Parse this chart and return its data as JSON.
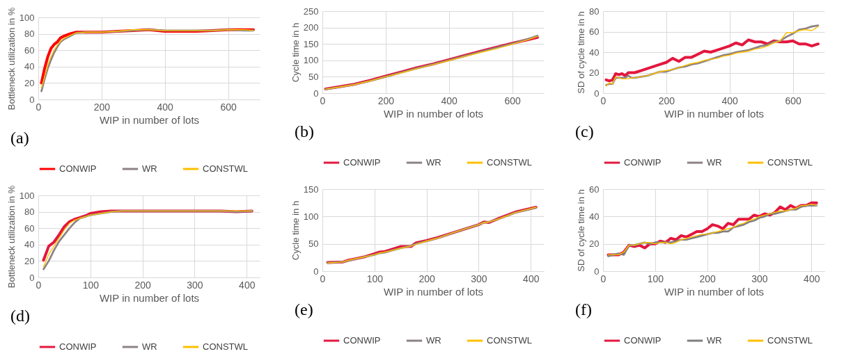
{
  "chart_data": [
    {
      "type": "line",
      "xlabel": "WIP in number of lots",
      "ylabel": "Bottleneck utilization in %",
      "annotations": [
        "(a)"
      ],
      "xlim": [
        0,
        700
      ],
      "xticks": [
        0,
        200,
        400,
        600
      ],
      "ylim": [
        0,
        100
      ],
      "yticks": [
        0,
        20,
        40,
        60,
        80,
        100
      ],
      "grid": true,
      "legend": "bottom",
      "marker": "none",
      "line_style": "solid",
      "x": [
        10,
        20,
        30,
        40,
        50,
        60,
        70,
        80,
        100,
        120,
        150,
        200,
        250,
        300,
        350,
        400,
        450,
        500,
        550,
        600,
        650,
        680
      ],
      "series": [
        {
          "name": "CONWIP",
          "color": "#ff0000",
          "values": [
            20,
            38,
            52,
            62,
            67,
            70,
            75,
            77,
            80,
            82,
            82,
            82,
            83,
            84,
            85,
            83,
            83,
            83,
            84,
            85,
            85,
            85
          ]
        },
        {
          "name": "WR",
          "color": "#8c8284",
          "values": [
            10,
            25,
            38,
            48,
            57,
            64,
            70,
            73,
            77,
            81,
            82,
            82,
            83,
            84,
            85,
            84,
            84,
            84,
            84,
            85,
            84,
            84
          ]
        },
        {
          "name": "CONSTWL",
          "color": "#ffc000",
          "values": [
            14,
            28,
            42,
            52,
            60,
            66,
            71,
            74,
            78,
            81,
            82,
            82,
            83,
            85,
            85,
            84,
            84,
            84,
            84,
            85,
            85,
            84
          ]
        }
      ]
    },
    {
      "type": "line",
      "xlabel": "WIP in number of lots",
      "ylabel": "Cycle time in h",
      "annotations": [
        "(b)"
      ],
      "xlim": [
        0,
        700
      ],
      "xticks": [
        0,
        200,
        400,
        600
      ],
      "ylim": [
        0,
        250
      ],
      "yticks": [
        0,
        50,
        100,
        150,
        200,
        250
      ],
      "grid": true,
      "legend": "bottom",
      "marker": "none",
      "line_style": "solid",
      "x": [
        10,
        50,
        100,
        150,
        200,
        250,
        300,
        350,
        400,
        450,
        500,
        550,
        600,
        650,
        680
      ],
      "series": [
        {
          "name": "CONWIP",
          "color": "#e3173e",
          "values": [
            13,
            19,
            27,
            39,
            52,
            65,
            78,
            89,
            102,
            115,
            128,
            140,
            152,
            163,
            170
          ]
        },
        {
          "name": "WR",
          "color": "#8c8284",
          "values": [
            12,
            18,
            26,
            37,
            50,
            63,
            76,
            88,
            100,
            113,
            126,
            138,
            151,
            165,
            175
          ]
        },
        {
          "name": "CONSTWL",
          "color": "#ffc000",
          "values": [
            12,
            18,
            26,
            37,
            50,
            62,
            75,
            87,
            99,
            112,
            124,
            136,
            149,
            163,
            173
          ]
        }
      ]
    },
    {
      "type": "line",
      "xlabel": "WIP in number of lots",
      "ylabel": "SD of cycle time in h",
      "annotations": [
        "(c)"
      ],
      "xlim": [
        0,
        700
      ],
      "xticks": [
        0,
        200,
        400,
        600
      ],
      "ylim": [
        0,
        80
      ],
      "yticks": [
        0,
        20,
        40,
        60,
        80
      ],
      "grid": true,
      "legend": "bottom",
      "marker": "none",
      "line_style": "solid",
      "x": [
        10,
        20,
        30,
        40,
        50,
        60,
        70,
        80,
        90,
        100,
        120,
        140,
        160,
        180,
        200,
        220,
        240,
        260,
        280,
        300,
        320,
        340,
        360,
        380,
        400,
        420,
        440,
        460,
        480,
        500,
        520,
        540,
        560,
        580,
        600,
        620,
        640,
        660,
        680
      ],
      "series": [
        {
          "name": "CONWIP",
          "color": "#e3173e",
          "values": [
            13,
            12,
            13,
            19,
            18,
            19,
            17,
            20,
            20,
            20,
            22,
            24,
            26,
            28,
            30,
            34,
            31,
            35,
            35,
            38,
            41,
            40,
            42,
            44,
            46,
            49,
            47,
            52,
            50,
            50,
            48,
            51,
            50,
            50,
            51,
            48,
            48,
            46,
            48
          ]
        },
        {
          "name": "WR",
          "color": "#8c8284",
          "values": [
            8,
            9,
            9,
            15,
            15,
            15,
            15,
            17,
            15,
            15,
            16,
            17,
            19,
            21,
            21,
            23,
            25,
            26,
            28,
            29,
            31,
            33,
            35,
            37,
            38,
            40,
            41,
            42,
            44,
            46,
            47,
            50,
            51,
            55,
            58,
            62,
            63,
            65,
            66
          ]
        },
        {
          "name": "CONSTWL",
          "color": "#ffc000",
          "values": [
            7,
            10,
            9,
            16,
            15,
            14,
            14,
            14,
            15,
            15,
            16,
            17,
            19,
            21,
            22,
            23,
            25,
            27,
            29,
            30,
            32,
            33,
            34,
            36,
            37,
            39,
            40,
            41,
            43,
            44,
            46,
            49,
            51,
            59,
            59,
            61,
            62,
            61,
            65
          ]
        }
      ]
    },
    {
      "type": "line",
      "xlabel": "WIP in number of lots",
      "ylabel": "Bottleneck utilization in %",
      "annotations": [
        "(d)"
      ],
      "xlim": [
        0,
        425
      ],
      "xticks": [
        0,
        100,
        200,
        300,
        400
      ],
      "ylim": [
        0,
        100
      ],
      "yticks": [
        0,
        20,
        40,
        60,
        80,
        100
      ],
      "grid": true,
      "legend": "bottom",
      "marker": "none",
      "line_style": "solid",
      "x": [
        10,
        20,
        30,
        40,
        50,
        60,
        70,
        80,
        90,
        100,
        120,
        140,
        160,
        200,
        250,
        300,
        350,
        380,
        410
      ],
      "series": [
        {
          "name": "CONWIP",
          "color": "#e3173e",
          "values": [
            21,
            38,
            43,
            52,
            62,
            68,
            71,
            73,
            75,
            78,
            80,
            81,
            81,
            81,
            81,
            81,
            81,
            80,
            81
          ]
        },
        {
          "name": "WR",
          "color": "#8c8284",
          "values": [
            10,
            20,
            33,
            44,
            52,
            60,
            67,
            72,
            74,
            76,
            78,
            80,
            81,
            81,
            81,
            81,
            81,
            80,
            81
          ]
        },
        {
          "name": "CONSTWL",
          "color": "#ffc000",
          "values": [
            13,
            28,
            38,
            48,
            58,
            66,
            70,
            72,
            74,
            76,
            78,
            80,
            81,
            81,
            81,
            81,
            81,
            81,
            81
          ]
        }
      ]
    },
    {
      "type": "line",
      "xlabel": "WIP in number of lots",
      "ylabel": "Cycle time in h",
      "annotations": [
        "(e)"
      ],
      "xlim": [
        0,
        425
      ],
      "xticks": [
        0,
        100,
        200,
        300,
        400
      ],
      "ylim": [
        0,
        150
      ],
      "yticks": [
        0,
        50,
        100,
        150
      ],
      "grid": true,
      "legend": "bottom",
      "marker": "none",
      "line_style": "solid",
      "x": [
        10,
        40,
        50,
        80,
        100,
        110,
        120,
        130,
        150,
        170,
        180,
        200,
        220,
        250,
        300,
        310,
        320,
        340,
        370,
        410
      ],
      "series": [
        {
          "name": "CONWIP",
          "color": "#e3173e",
          "values": [
            16,
            17,
            20,
            26,
            32,
            35,
            36,
            39,
            45,
            45,
            52,
            56,
            61,
            70,
            85,
            90,
            89,
            97,
            108,
            117
          ]
        },
        {
          "name": "WR",
          "color": "#8c8284",
          "values": [
            15,
            17,
            19,
            26,
            30,
            33,
            34,
            37,
            42,
            46,
            50,
            55,
            60,
            70,
            85,
            89,
            90,
            96,
            107,
            116
          ]
        },
        {
          "name": "CONSTWL",
          "color": "#ffc000",
          "values": [
            15,
            17,
            20,
            26,
            30,
            33,
            35,
            37,
            42,
            46,
            49,
            55,
            60,
            70,
            85,
            89,
            90,
            96,
            107,
            117
          ]
        }
      ]
    },
    {
      "type": "line",
      "xlabel": "WIP in number of lots",
      "ylabel": "SD of cycle time in h",
      "annotations": [
        "(f)"
      ],
      "xlim": [
        0,
        425
      ],
      "xticks": [
        0,
        100,
        200,
        300,
        400
      ],
      "ylim": [
        0,
        60
      ],
      "yticks": [
        0,
        20,
        40,
        60
      ],
      "grid": true,
      "legend": "bottom",
      "marker": "none",
      "line_style": "solid",
      "x": [
        10,
        20,
        30,
        40,
        50,
        60,
        70,
        80,
        90,
        100,
        110,
        120,
        130,
        140,
        150,
        160,
        170,
        180,
        190,
        200,
        210,
        220,
        230,
        240,
        250,
        260,
        270,
        280,
        290,
        300,
        310,
        320,
        330,
        340,
        350,
        360,
        370,
        380,
        390,
        400,
        410
      ],
      "series": [
        {
          "name": "CONWIP",
          "color": "#e3173e",
          "values": [
            12,
            12,
            12,
            14,
            19,
            18,
            19,
            17,
            20,
            20,
            22,
            21,
            24,
            23,
            26,
            25,
            27,
            29,
            29,
            31,
            34,
            33,
            31,
            35,
            34,
            38,
            38,
            38,
            41,
            40,
            42,
            41,
            43,
            47,
            45,
            48,
            46,
            48,
            48,
            50,
            50
          ]
        },
        {
          "name": "WR",
          "color": "#7f7f7f",
          "values": [
            11,
            12,
            13,
            12,
            19,
            19,
            20,
            21,
            20,
            21,
            21,
            21,
            21,
            22,
            23,
            23,
            24,
            25,
            26,
            27,
            28,
            28,
            29,
            29,
            32,
            33,
            34,
            36,
            37,
            39,
            40,
            42,
            42,
            43,
            44,
            45,
            45,
            47,
            48,
            48,
            48
          ]
        },
        {
          "name": "CONSTWL",
          "color": "#ffc000",
          "values": [
            12,
            12,
            12,
            14,
            19,
            19,
            20,
            21,
            21,
            20,
            21,
            21,
            20,
            21,
            23,
            24,
            25,
            26,
            27,
            27,
            28,
            29,
            30,
            31,
            32,
            34,
            35,
            37,
            38,
            40,
            41,
            42,
            43,
            44,
            44,
            45,
            46,
            48,
            48,
            49,
            48
          ]
        }
      ]
    }
  ]
}
